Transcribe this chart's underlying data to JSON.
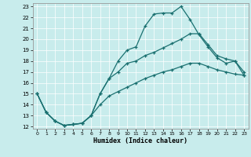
{
  "xlabel": "Humidex (Indice chaleur)",
  "bg_color": "#c8ecec",
  "line_color": "#1a7070",
  "grid_color": "#ffffff",
  "xmin": 0,
  "xmax": 23,
  "ymin": 12,
  "ymax": 23,
  "line1_x": [
    0,
    1,
    2,
    3,
    4,
    5,
    6,
    7,
    8,
    9,
    10,
    11,
    12,
    13,
    14,
    15,
    16,
    17,
    18,
    19,
    20,
    21,
    22,
    23
  ],
  "line1_y": [
    15.0,
    13.3,
    12.5,
    12.1,
    12.2,
    12.3,
    13.0,
    15.0,
    16.4,
    18.0,
    19.0,
    19.3,
    21.2,
    22.3,
    22.4,
    22.4,
    23.0,
    21.8,
    20.4,
    19.3,
    18.3,
    17.8,
    18.0,
    17.0
  ],
  "line2_x": [
    0,
    1,
    2,
    3,
    4,
    5,
    6,
    7,
    8,
    9,
    10,
    11,
    12,
    13,
    14,
    15,
    16,
    17,
    18,
    19,
    20,
    21,
    22,
    23
  ],
  "line2_y": [
    15.0,
    13.3,
    12.5,
    12.1,
    12.2,
    12.3,
    13.0,
    15.0,
    16.4,
    17.0,
    17.8,
    18.0,
    18.5,
    18.8,
    19.2,
    19.6,
    20.0,
    20.5,
    20.5,
    19.5,
    18.5,
    18.2,
    18.0,
    16.7
  ],
  "line3_x": [
    0,
    1,
    2,
    3,
    4,
    5,
    6,
    7,
    8,
    9,
    10,
    11,
    12,
    13,
    14,
    15,
    16,
    17,
    18,
    19,
    20,
    21,
    22,
    23
  ],
  "line3_y": [
    15.0,
    13.3,
    12.5,
    12.1,
    12.2,
    12.3,
    13.0,
    14.0,
    14.8,
    15.2,
    15.6,
    16.0,
    16.4,
    16.7,
    17.0,
    17.2,
    17.5,
    17.8,
    17.8,
    17.5,
    17.2,
    17.0,
    16.8,
    16.7
  ]
}
